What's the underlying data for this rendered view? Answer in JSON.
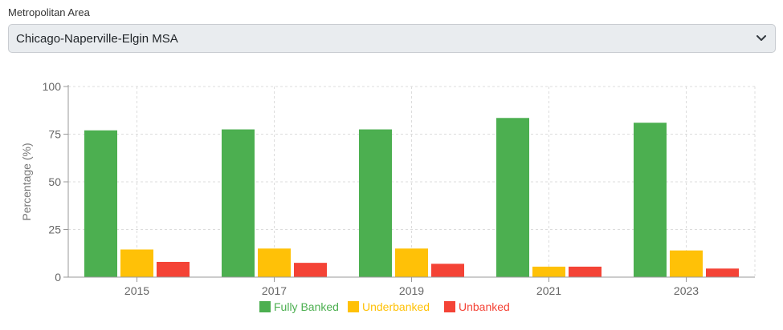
{
  "filter": {
    "label": "Metropolitan Area",
    "selected": "Chicago-Naperville-Elgin MSA"
  },
  "colors": {
    "fully_banked": "#4caf50",
    "underbanked": "#ffc107",
    "unbanked": "#f44336"
  },
  "chart_data": {
    "type": "bar",
    "categories": [
      "2015",
      "2017",
      "2019",
      "2021",
      "2023"
    ],
    "series": [
      {
        "name": "Fully Banked",
        "values": [
          77,
          77.5,
          77.5,
          83.5,
          81
        ],
        "color": "#4caf50"
      },
      {
        "name": "Underbanked",
        "values": [
          14.5,
          15,
          15,
          5.5,
          14
        ],
        "color": "#ffc107"
      },
      {
        "name": "Unbanked",
        "values": [
          8,
          7.5,
          7,
          5.5,
          4.5
        ],
        "color": "#f44336"
      }
    ],
    "ylabel": "Percentage (%)",
    "xlabel": "",
    "ylim": [
      0,
      100
    ],
    "yticks": [
      0,
      25,
      50,
      75,
      100
    ],
    "grid": true,
    "legend_position": "bottom"
  }
}
